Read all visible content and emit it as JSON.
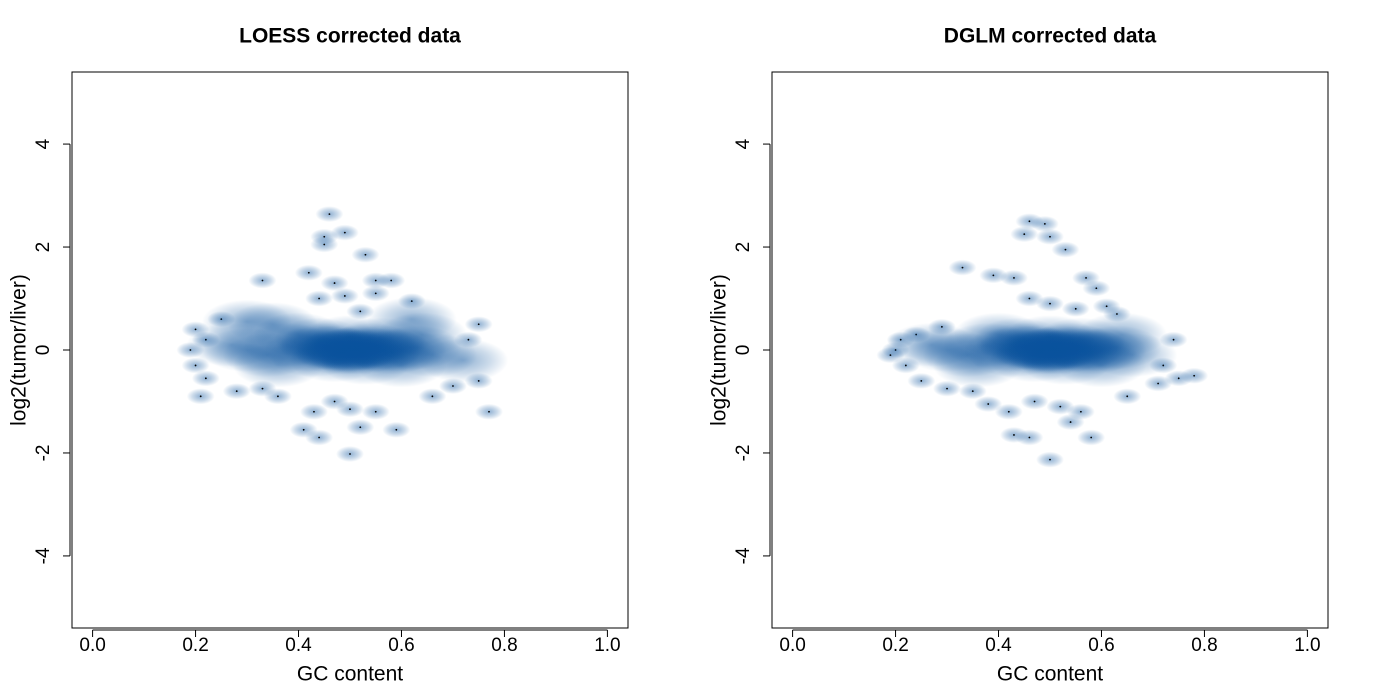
{
  "chart_data": [
    {
      "type": "density",
      "title": "LOESS corrected data",
      "xlabel": "GC content",
      "ylabel": "log2(tumor/liver)",
      "color": "#08519c",
      "xlim": [
        -0.04,
        1.04
      ],
      "ylim": [
        -5.4,
        5.4
      ],
      "xticks": [
        {
          "value": 0,
          "label": "0.0"
        },
        0.2,
        0.4,
        0.6,
        0.8,
        {
          "value": 1,
          "label": "1.0"
        }
      ],
      "yticks": [
        -4,
        -2,
        0,
        2,
        4
      ],
      "x": [
        0.46,
        0.49,
        0.45,
        0.45,
        0.53,
        0.33,
        0.42,
        0.47,
        0.55,
        0.58,
        0.44,
        0.49,
        0.55,
        0.62,
        0.52,
        0.2,
        0.25,
        0.22,
        0.19,
        0.2,
        0.22,
        0.21,
        0.28,
        0.33,
        0.36,
        0.43,
        0.47,
        0.5,
        0.55,
        0.41,
        0.44,
        0.52,
        0.59,
        0.5,
        0.66,
        0.7,
        0.75,
        0.77,
        0.75,
        0.73,
        0.72,
        0.62,
        0.35,
        0.3,
        0.3,
        0.34,
        0.38,
        0.42,
        0.45,
        0.48,
        0.5,
        0.52,
        0.55,
        0.58,
        0.6,
        0.63,
        0.66,
        0.4,
        0.44,
        0.47,
        0.5,
        0.53,
        0.56,
        0.6,
        0.43,
        0.47,
        0.5,
        0.54,
        0.57,
        0.45,
        0.49,
        0.52,
        0.56,
        0.48,
        0.51,
        0.36,
        0.64,
        0.27
      ],
      "values": [
        2.64,
        2.28,
        2.2,
        2.05,
        1.85,
        1.35,
        1.5,
        1.3,
        1.35,
        1.35,
        1.0,
        1.05,
        1.1,
        0.95,
        0.75,
        0.4,
        0.6,
        0.2,
        0.0,
        -0.3,
        -0.55,
        -0.9,
        -0.8,
        -0.75,
        -0.9,
        -1.2,
        -1.0,
        -1.15,
        -1.2,
        -1.55,
        -1.7,
        -1.5,
        -1.55,
        -2.02,
        -0.9,
        -0.7,
        -0.6,
        -1.2,
        0.5,
        0.2,
        -0.2,
        0.6,
        0.5,
        0.55,
        0.0,
        -0.1,
        0.1,
        0.0,
        0.05,
        -0.05,
        0.0,
        0.05,
        0.0,
        -0.05,
        0.0,
        0.05,
        -0.1,
        0.3,
        0.2,
        -0.2,
        0.25,
        -0.25,
        0.2,
        -0.3,
        -0.1,
        0.05,
        -0.05,
        0.1,
        0.0,
        0.1,
        0.0,
        -0.05,
        0.05,
        0.0,
        0.02,
        -0.3,
        0.3,
        0.1
      ]
    },
    {
      "type": "density",
      "title": "DGLM corrected data",
      "xlabel": "GC content",
      "ylabel": "log2(tumor/liver)",
      "color": "#08519c",
      "xlim": [
        -0.04,
        1.04
      ],
      "ylim": [
        -5.4,
        5.4
      ],
      "xticks": [
        {
          "value": 0,
          "label": "0.0"
        },
        0.2,
        0.4,
        0.6,
        0.8,
        {
          "value": 1,
          "label": "1.0"
        }
      ],
      "yticks": [
        -4,
        -2,
        0,
        2,
        4
      ],
      "x": [
        0.46,
        0.49,
        0.45,
        0.5,
        0.53,
        0.33,
        0.39,
        0.43,
        0.57,
        0.59,
        0.46,
        0.5,
        0.55,
        0.61,
        0.2,
        0.24,
        0.22,
        0.19,
        0.21,
        0.25,
        0.3,
        0.35,
        0.38,
        0.42,
        0.47,
        0.52,
        0.56,
        0.43,
        0.46,
        0.54,
        0.58,
        0.5,
        0.65,
        0.71,
        0.75,
        0.78,
        0.74,
        0.72,
        0.63,
        0.29,
        0.3,
        0.34,
        0.38,
        0.42,
        0.45,
        0.48,
        0.5,
        0.52,
        0.55,
        0.58,
        0.6,
        0.63,
        0.66,
        0.4,
        0.44,
        0.47,
        0.5,
        0.53,
        0.56,
        0.6,
        0.43,
        0.47,
        0.5,
        0.54,
        0.57,
        0.45,
        0.49,
        0.52,
        0.56,
        0.48,
        0.51,
        0.36,
        0.64,
        0.27
      ],
      "values": [
        2.5,
        2.45,
        2.25,
        2.2,
        1.95,
        1.6,
        1.45,
        1.4,
        1.4,
        1.2,
        1.0,
        0.9,
        0.8,
        0.85,
        0.0,
        0.3,
        -0.3,
        -0.1,
        0.2,
        -0.6,
        -0.75,
        -0.8,
        -1.05,
        -1.2,
        -1.0,
        -1.1,
        -1.2,
        -1.65,
        -1.7,
        -1.4,
        -1.7,
        -2.13,
        -0.9,
        -0.65,
        -0.55,
        -0.5,
        0.2,
        -0.3,
        0.7,
        0.45,
        0.0,
        -0.1,
        0.1,
        0.0,
        0.05,
        -0.05,
        0.0,
        0.05,
        0.0,
        -0.05,
        0.0,
        0.05,
        -0.1,
        0.3,
        0.2,
        -0.2,
        0.25,
        -0.25,
        0.2,
        -0.3,
        -0.1,
        0.05,
        -0.05,
        0.1,
        0.0,
        0.1,
        0.0,
        -0.05,
        0.05,
        0.0,
        0.02,
        -0.3,
        0.3,
        0.1
      ]
    }
  ]
}
